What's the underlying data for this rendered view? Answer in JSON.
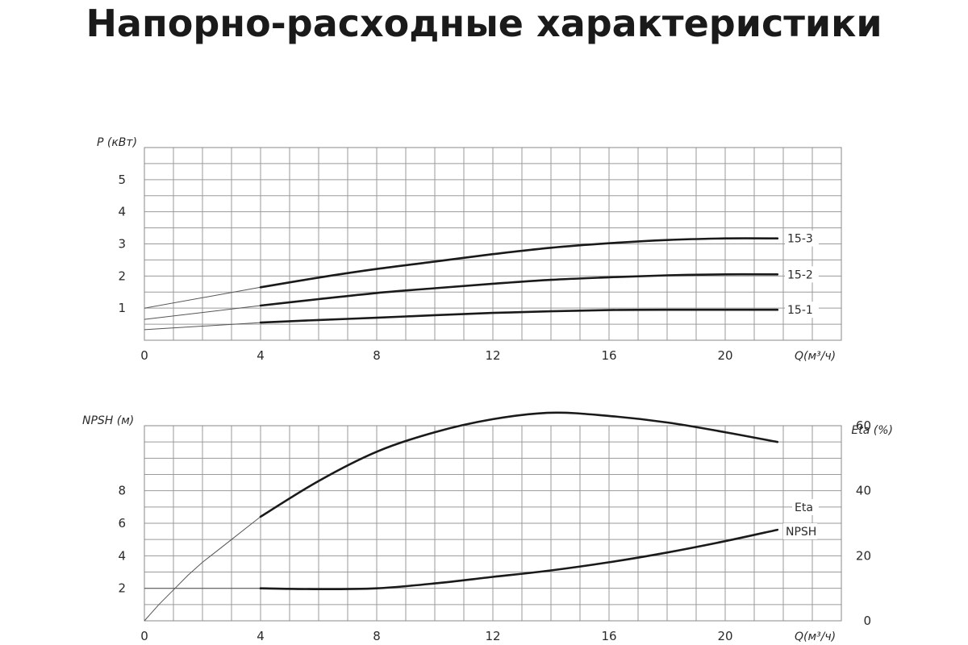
{
  "title": "Напорно-расходные характеристики",
  "chart_data": [
    {
      "type": "line",
      "title": "",
      "xlabel": "Q(м³/ч)",
      "ylabel": "P (кВт)",
      "xlim": [
        0,
        24
      ],
      "ylim": [
        0,
        6
      ],
      "x_ticks": [
        0,
        4,
        8,
        12,
        16,
        20
      ],
      "y_ticks": [
        1,
        2,
        3,
        4,
        5
      ],
      "grid": true,
      "series": [
        {
          "name": "15-3",
          "x": [
            4,
            6,
            8,
            10,
            12,
            14,
            16,
            18,
            20,
            21.8
          ],
          "y": [
            1.65,
            1.95,
            2.22,
            2.45,
            2.68,
            2.88,
            3.02,
            3.12,
            3.17,
            3.17
          ],
          "extrapolated": {
            "x": [
              0,
              4
            ],
            "y": [
              1.0,
              1.65
            ]
          }
        },
        {
          "name": "15-2",
          "x": [
            4,
            6,
            8,
            10,
            12,
            14,
            16,
            18,
            20,
            21.8
          ],
          "y": [
            1.08,
            1.28,
            1.47,
            1.62,
            1.76,
            1.88,
            1.96,
            2.02,
            2.05,
            2.05
          ],
          "extrapolated": {
            "x": [
              0,
              4
            ],
            "y": [
              0.65,
              1.08
            ]
          }
        },
        {
          "name": "15-1",
          "x": [
            4,
            6,
            8,
            10,
            12,
            14,
            16,
            18,
            20,
            21.8
          ],
          "y": [
            0.55,
            0.63,
            0.7,
            0.78,
            0.85,
            0.9,
            0.94,
            0.95,
            0.95,
            0.95
          ],
          "extrapolated": {
            "x": [
              0,
              4
            ],
            "y": [
              0.33,
              0.55
            ]
          }
        }
      ]
    },
    {
      "type": "line",
      "title": "",
      "xlabel": "Q(м³/ч)",
      "ylabel": "NPSH (м)",
      "ylabel_right": "Eta (%)",
      "xlim": [
        0,
        24
      ],
      "ylim": [
        0,
        12
      ],
      "ylim_right": [
        0,
        60
      ],
      "x_ticks": [
        0,
        4,
        8,
        12,
        16,
        20
      ],
      "y_ticks": [
        2,
        4,
        6,
        8
      ],
      "y_ticks_right": [
        0,
        20,
        40,
        60
      ],
      "grid": true,
      "series": [
        {
          "name": "Eta",
          "axis": "right",
          "x": [
            4,
            6,
            8,
            10,
            12,
            14,
            16,
            18,
            20,
            21.8
          ],
          "y": [
            32,
            43,
            52,
            58,
            62,
            64,
            63,
            61,
            58,
            55
          ],
          "extrapolated": {
            "x": [
              0,
              0.5,
              1,
              1.5,
              2,
              2.5,
              3,
              3.5,
              4
            ],
            "y": [
              0,
              5,
              9.5,
              14,
              18,
              21.5,
              25,
              28.5,
              32
            ]
          }
        },
        {
          "name": "NPSH",
          "axis": "left",
          "x": [
            4,
            6,
            8,
            10,
            12,
            14,
            16,
            18,
            20,
            21.8
          ],
          "y": [
            2.0,
            1.95,
            2.0,
            2.3,
            2.7,
            3.1,
            3.6,
            4.2,
            4.9,
            5.6
          ],
          "extrapolated": {
            "x": [
              0,
              4
            ],
            "y": [
              2.0,
              2.0
            ]
          }
        }
      ]
    }
  ]
}
